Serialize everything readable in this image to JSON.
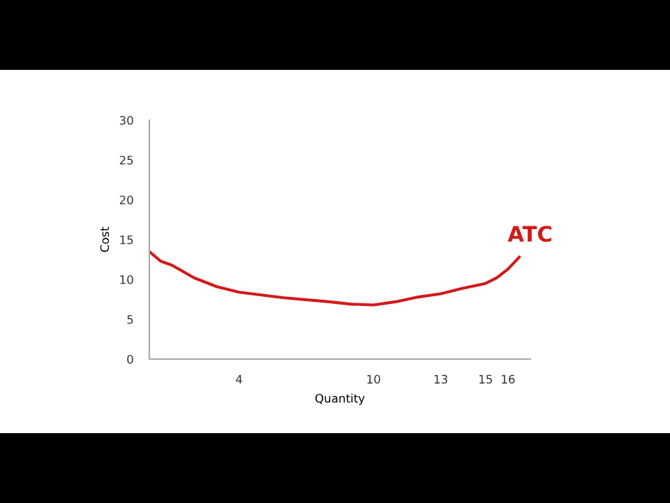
{
  "chart_data": {
    "type": "line",
    "xlabel": "Quantity",
    "ylabel": "Cost",
    "series": [
      {
        "color": "#d11a1a",
        "x": [
          0,
          0.5,
          1,
          2,
          3,
          4,
          6,
          8,
          9,
          10,
          11,
          12,
          13,
          14,
          15,
          15.5,
          16,
          16.5
        ],
        "values": [
          13.5,
          12.3,
          11.8,
          10.2,
          9.1,
          8.4,
          7.7,
          7.2,
          6.9,
          6.8,
          7.2,
          7.8,
          8.2,
          8.9,
          9.5,
          10.2,
          11.3,
          12.8
        ]
      }
    ],
    "annotations": [
      {
        "text": "ATC",
        "x": 16.5,
        "y": 12.8
      }
    ],
    "xlim": [
      0,
      17
    ],
    "xticks": [
      4,
      10,
      13,
      15,
      16
    ],
    "ylim": [
      0,
      30
    ],
    "yticks": [
      0,
      5,
      10,
      15,
      20,
      25,
      30
    ],
    "grid": false,
    "legend": false,
    "marker": "none",
    "line_style": "solid"
  }
}
